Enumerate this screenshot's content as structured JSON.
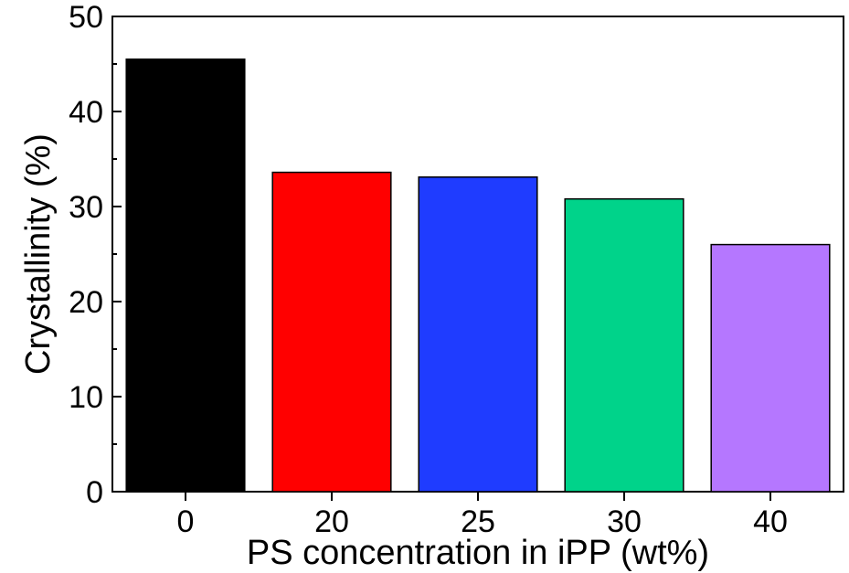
{
  "chart_data": {
    "type": "bar",
    "title": "",
    "xlabel": "PS concentration in iPP (wt%)",
    "ylabel": "Crystallinity (%)",
    "categories": [
      "0",
      "20",
      "25",
      "30",
      "40"
    ],
    "values": [
      45.5,
      33.6,
      33.1,
      30.8,
      26.0
    ],
    "colors": [
      "#000000",
      "#ff0000",
      "#1f3cff",
      "#00d38a",
      "#b577ff"
    ],
    "ylim": [
      0,
      50
    ],
    "yticks": [
      "0",
      "10",
      "20",
      "30",
      "40",
      "50"
    ],
    "grid": false,
    "legend": "none"
  }
}
